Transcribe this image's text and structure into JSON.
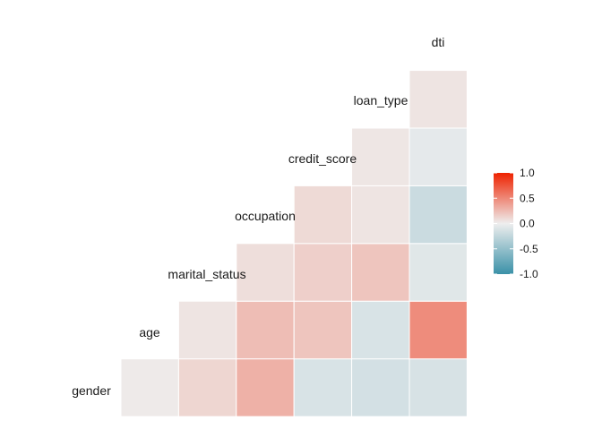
{
  "chart_data": {
    "type": "heatmap",
    "title": "",
    "variables": [
      "gender",
      "age",
      "marital_status",
      "occupation",
      "credit_score",
      "loan_type",
      "dti"
    ],
    "matrix_lower_triangle": [
      {
        "row": "age",
        "values": [
          0.02
        ]
      },
      {
        "row": "marital_status",
        "values": [
          0.12,
          0.05
        ]
      },
      {
        "row": "occupation",
        "values": [
          0.3,
          0.24,
          0.08
        ]
      },
      {
        "row": "credit_score",
        "values": [
          -0.12,
          0.2,
          0.15,
          0.1
        ]
      },
      {
        "row": "loan_type",
        "values": [
          -0.15,
          -0.12,
          0.2,
          0.05,
          0.04
        ]
      },
      {
        "row": "dti",
        "values": [
          -0.13,
          0.48,
          -0.08,
          -0.2,
          -0.05,
          0.05
        ]
      }
    ],
    "legend": {
      "position": "right",
      "range": [
        -1,
        1
      ],
      "ticks": [
        "1.0",
        "0.5",
        "0.0",
        "-0.5",
        "-1.0"
      ],
      "tick_values": [
        1.0,
        0.5,
        0.0,
        -0.5,
        -1.0
      ]
    },
    "colors": {
      "low": "#3A91A8",
      "mid": "#EEEEEE",
      "high": "#EE2200"
    },
    "grid": false,
    "cell_border": "#ffffff"
  }
}
